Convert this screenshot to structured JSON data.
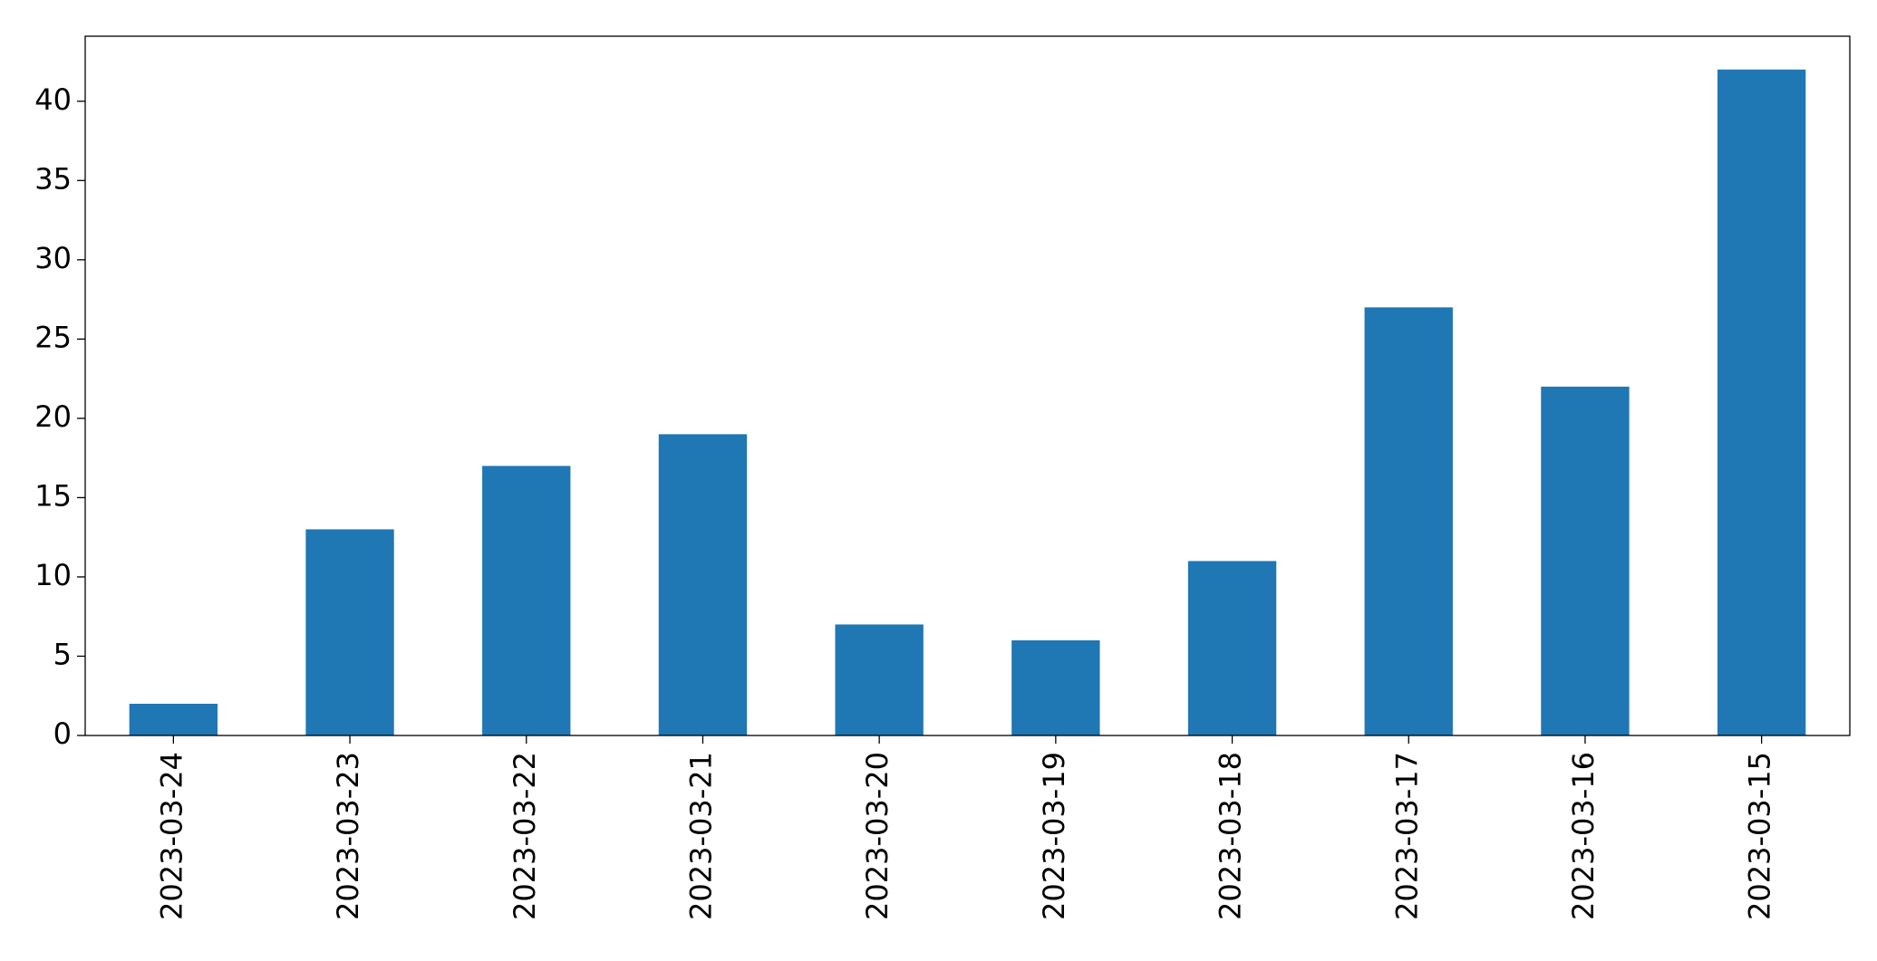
{
  "chart_data": {
    "type": "bar",
    "categories": [
      "2023-03-24",
      "2023-03-23",
      "2023-03-22",
      "2023-03-21",
      "2023-03-20",
      "2023-03-19",
      "2023-03-18",
      "2023-03-17",
      "2023-03-16",
      "2023-03-15"
    ],
    "values": [
      2,
      13,
      17,
      19,
      7,
      6,
      11,
      27,
      22,
      42
    ],
    "color": "#1f77b4",
    "ylim": [
      0,
      44.1
    ],
    "yticks": [
      0,
      5,
      10,
      15,
      20,
      25,
      30,
      35,
      40
    ],
    "grid": false
  }
}
